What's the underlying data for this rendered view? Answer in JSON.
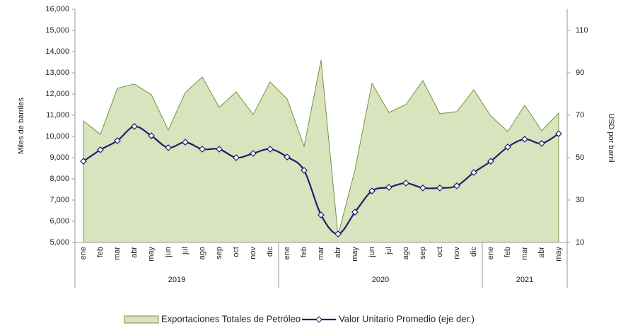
{
  "chart_data": {
    "type": "area_line",
    "categories": [
      "ene",
      "feb",
      "mar",
      "abr",
      "may",
      "jun",
      "jul",
      "ago",
      "sep",
      "oct",
      "nov",
      "dic",
      "ene",
      "feb",
      "mar",
      "abr",
      "may",
      "jun",
      "jul",
      "ago",
      "sep",
      "oct",
      "nov",
      "dic",
      "ene",
      "feb",
      "mar",
      "abr",
      "may"
    ],
    "category_groups": [
      {
        "label": "2019",
        "size": 12
      },
      {
        "label": "2020",
        "size": 12
      },
      {
        "label": "2021",
        "size": 5
      }
    ],
    "ylabel": "Miles de barriles",
    "y2label": "USD por barril",
    "ylim": [
      5000,
      16000
    ],
    "yticks": [
      {
        "value": 5000,
        "label": "5,000"
      },
      {
        "value": 6000,
        "label": "6,000"
      },
      {
        "value": 7000,
        "label": "7,000"
      },
      {
        "value": 8000,
        "label": "8,000"
      },
      {
        "value": 9000,
        "label": "9,000"
      },
      {
        "value": 10000,
        "label": "10,000"
      },
      {
        "value": 11000,
        "label": "11,000"
      },
      {
        "value": 12000,
        "label": "12,000"
      },
      {
        "value": 13000,
        "label": "13,000"
      },
      {
        "value": 14000,
        "label": "14,000"
      },
      {
        "value": 15000,
        "label": "15,000"
      },
      {
        "value": 16000,
        "label": "16,000"
      }
    ],
    "y2lim": [
      10,
      120
    ],
    "y2ticks": [
      10,
      30,
      50,
      70,
      90,
      110
    ],
    "grid": false,
    "series": [
      {
        "name": "Exportaciones Totales de Petróleo",
        "kind": "area",
        "color": "#d7e4bd",
        "edge_color": "#77933c",
        "values": [
          10730,
          10100,
          12270,
          12470,
          11970,
          10300,
          12070,
          12800,
          11370,
          12100,
          11030,
          12570,
          11770,
          9530,
          13600,
          5330,
          8430,
          12500,
          11130,
          11500,
          12630,
          11070,
          11170,
          12200,
          10970,
          10230,
          11470,
          10270,
          11100
        ]
      },
      {
        "name": "Valor Unitario Promedio (eje der.)",
        "kind": "line",
        "axis": "y2",
        "color": "#1f1f6b",
        "values": [
          48.3,
          53.7,
          58,
          64.7,
          60.3,
          54.7,
          57.3,
          54,
          54,
          50,
          52,
          54,
          50.3,
          44,
          23,
          14,
          24.3,
          34.3,
          36,
          38,
          35.7,
          35.7,
          36.7,
          43,
          48.3,
          55,
          58.7,
          56.7,
          61.3
        ]
      }
    ]
  }
}
